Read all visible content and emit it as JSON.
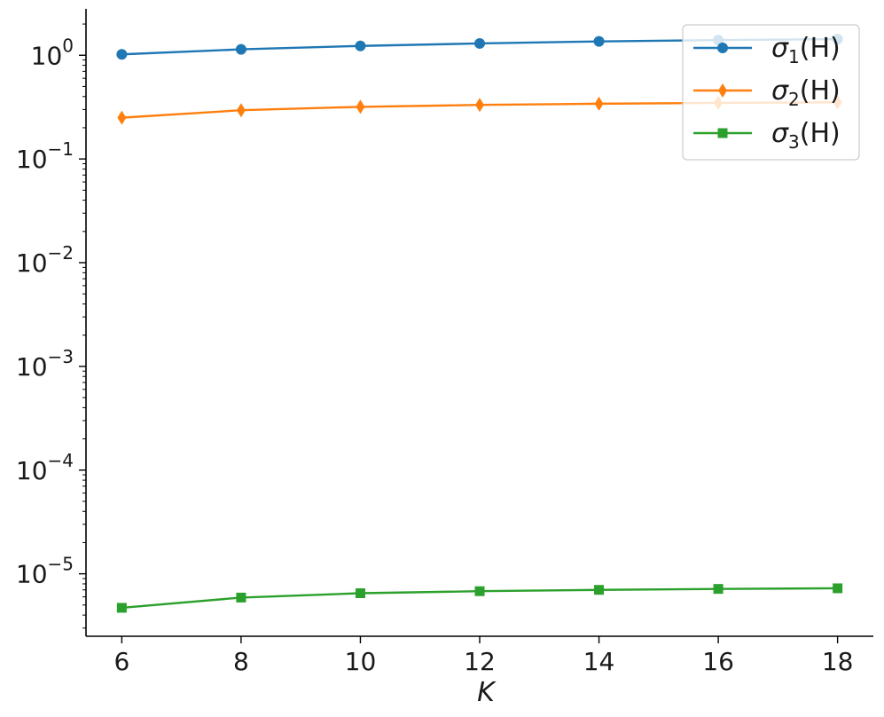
{
  "chart_data": {
    "type": "line",
    "xlabel": "K",
    "ylabel": "",
    "yscale": "log",
    "xlim": [
      5.4,
      18.6
    ],
    "ylim": [
      2.5e-06,
      2.8
    ],
    "x_ticks": [
      6,
      8,
      10,
      12,
      14,
      16,
      18
    ],
    "y_ticks": [
      {
        "value": 1e-05,
        "base": "10",
        "exp": "−5"
      },
      {
        "value": 0.0001,
        "base": "10",
        "exp": "−4"
      },
      {
        "value": 0.001,
        "base": "10",
        "exp": "−3"
      },
      {
        "value": 0.01,
        "base": "10",
        "exp": "−2"
      },
      {
        "value": 0.1,
        "base": "10",
        "exp": "−1"
      },
      {
        "value": 1,
        "base": "10",
        "exp": "0"
      }
    ],
    "x": [
      6,
      8,
      10,
      12,
      14,
      16,
      18
    ],
    "series": [
      {
        "name": "σ1(H)",
        "sym": "σ",
        "sub": "1",
        "arg": "(H)",
        "color": "#1f77b4",
        "marker": "circle",
        "values": [
          1.02,
          1.14,
          1.23,
          1.3,
          1.36,
          1.4,
          1.43
        ]
      },
      {
        "name": "σ2(H)",
        "sym": "σ",
        "sub": "2",
        "arg": "(H)",
        "color": "#ff7f0e",
        "marker": "diamond",
        "values": [
          0.25,
          0.295,
          0.318,
          0.332,
          0.341,
          0.347,
          0.352
        ]
      },
      {
        "name": "σ3(H)",
        "sym": "σ",
        "sub": "3",
        "arg": "(H)",
        "color": "#2ca02c",
        "marker": "square",
        "values": [
          4.7e-06,
          5.9e-06,
          6.5e-06,
          6.8e-06,
          7e-06,
          7.15e-06,
          7.25e-06
        ]
      }
    ],
    "grid": false,
    "legend_position": "top-right"
  }
}
